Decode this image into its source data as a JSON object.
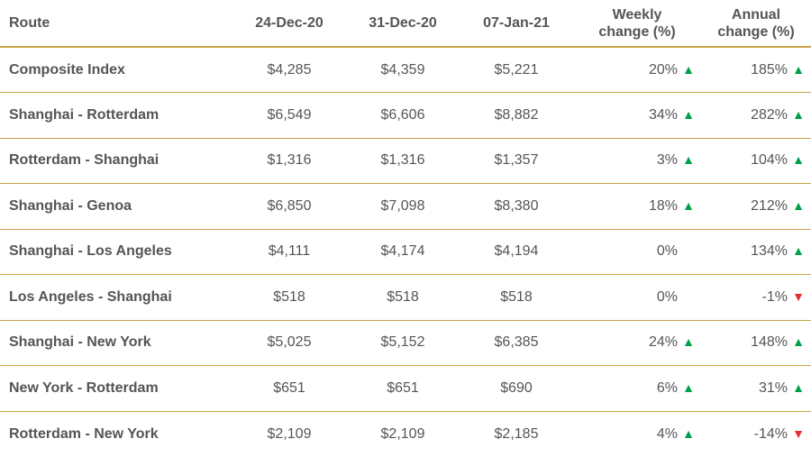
{
  "headers": {
    "route": "Route",
    "d1": "24-Dec-20",
    "d2": "31-Dec-20",
    "d3": "07-Jan-21",
    "weekly_line1": "Weekly",
    "weekly_line2": "change (%)",
    "annual_line1": "Annual",
    "annual_line2": "change (%)"
  },
  "colors": {
    "rule": "#c9a24b",
    "up": "#00a04a",
    "down": "#e52f2f",
    "text": "#555555"
  },
  "rows": [
    {
      "route": "Composite Index",
      "d1": "$4,285",
      "d2": "$4,359",
      "d3": "$5,221",
      "weekly": "20%",
      "weekly_dir": "up",
      "annual": "185%",
      "annual_dir": "up"
    },
    {
      "route": "Shanghai - Rotterdam",
      "d1": "$6,549",
      "d2": "$6,606",
      "d3": "$8,882",
      "weekly": "34%",
      "weekly_dir": "up",
      "annual": "282%",
      "annual_dir": "up"
    },
    {
      "route": "Rotterdam - Shanghai",
      "d1": "$1,316",
      "d2": "$1,316",
      "d3": "$1,357",
      "weekly": "3%",
      "weekly_dir": "up",
      "annual": "104%",
      "annual_dir": "up"
    },
    {
      "route": "Shanghai - Genoa",
      "d1": "$6,850",
      "d2": "$7,098",
      "d3": "$8,380",
      "weekly": "18%",
      "weekly_dir": "up",
      "annual": "212%",
      "annual_dir": "up"
    },
    {
      "route": "Shanghai - Los Angeles",
      "d1": "$4,111",
      "d2": "$4,174",
      "d3": "$4,194",
      "weekly": "0%",
      "weekly_dir": "none",
      "annual": "134%",
      "annual_dir": "up"
    },
    {
      "route": "Los Angeles - Shanghai",
      "d1": "$518",
      "d2": "$518",
      "d3": "$518",
      "weekly": "0%",
      "weekly_dir": "none",
      "annual": "-1%",
      "annual_dir": "down"
    },
    {
      "route": "Shanghai - New York",
      "d1": "$5,025",
      "d2": "$5,152",
      "d3": "$6,385",
      "weekly": "24%",
      "weekly_dir": "up",
      "annual": "148%",
      "annual_dir": "up"
    },
    {
      "route": "New York - Rotterdam",
      "d1": "$651",
      "d2": "$651",
      "d3": "$690",
      "weekly": "6%",
      "weekly_dir": "up",
      "annual": "31%",
      "annual_dir": "up"
    },
    {
      "route": "Rotterdam - New York",
      "d1": "$2,109",
      "d2": "$2,109",
      "d3": "$2,185",
      "weekly": "4%",
      "weekly_dir": "up",
      "annual": "-14%",
      "annual_dir": "down"
    }
  ]
}
